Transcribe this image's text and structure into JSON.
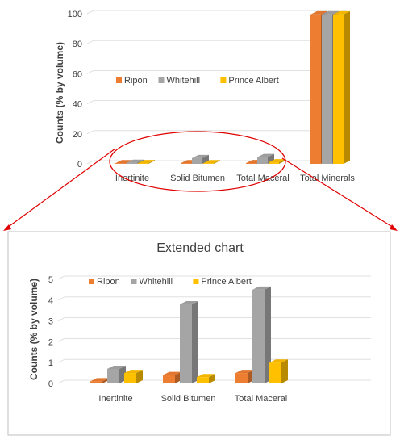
{
  "colors": {
    "ripon": "#ED7D31",
    "whitehill": "#A5A5A5",
    "prince_albert": "#FFC000",
    "annotation": "#E00000",
    "grid": "#D9D9D9",
    "frame": "#BFBFBF"
  },
  "chart_data": [
    {
      "type": "bar",
      "style": "3d-clustered-column",
      "title": "",
      "ylabel": "Counts (% by volume)",
      "xlabel": "",
      "categories": [
        "Inertinite",
        "Solid Bitumen",
        "Total Maceral",
        "Total Minerals"
      ],
      "series": [
        {
          "name": "Ripon",
          "values": [
            0.1,
            0.4,
            0.5,
            99.5
          ]
        },
        {
          "name": "Whitehill",
          "values": [
            0.7,
            3.8,
            4.5,
            99.5
          ]
        },
        {
          "name": "Prince Albert",
          "values": [
            0.5,
            0.3,
            1.0,
            99.5
          ]
        }
      ],
      "yticks": [
        "0",
        "20",
        "40",
        "60",
        "80",
        "100"
      ],
      "ylim": [
        0,
        100
      ],
      "grid": true,
      "legend": "inside-left"
    },
    {
      "type": "bar",
      "style": "3d-clustered-column",
      "title": "Extended chart",
      "ylabel": "Counts (% by volume)",
      "xlabel": "",
      "categories": [
        "Inertinite",
        "Solid Bitumen",
        "Total Maceral"
      ],
      "series": [
        {
          "name": "Ripon",
          "values": [
            0.1,
            0.4,
            0.5
          ]
        },
        {
          "name": "Whitehill",
          "values": [
            0.7,
            3.8,
            4.5
          ]
        },
        {
          "name": "Prince Albert",
          "values": [
            0.5,
            0.3,
            1.0
          ]
        }
      ],
      "yticks": [
        "0",
        "1",
        "2",
        "3",
        "4",
        "5"
      ],
      "ylim": [
        0,
        5
      ],
      "grid": true,
      "legend": "top"
    }
  ]
}
